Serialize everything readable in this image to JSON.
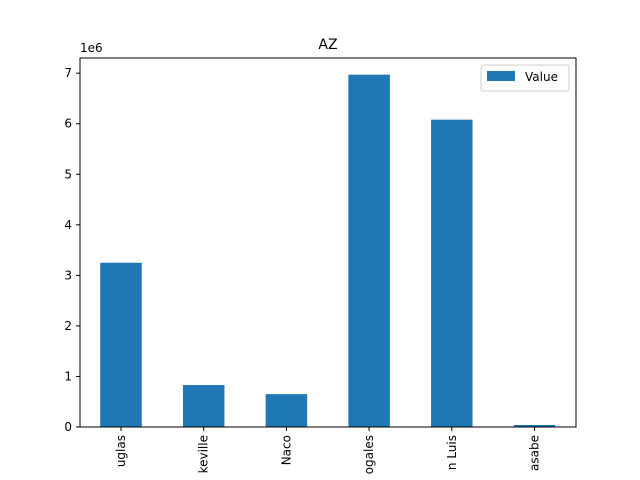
{
  "chart_data": {
    "type": "bar",
    "title": "AZ",
    "scale_label": "1e6",
    "categories": [
      "Douglas",
      "Lukeville",
      "Naco",
      "Nogales",
      "San Luis",
      "Sasabe"
    ],
    "category_labels_visible": [
      "uglas",
      "keville",
      "Naco",
      "ogales",
      "n Luis",
      "asabe"
    ],
    "series": [
      {
        "name": "Value",
        "values": [
          3250000,
          830000,
          650000,
          6970000,
          6080000,
          40000
        ]
      }
    ],
    "ylim": [
      0,
      7300000.0
    ],
    "yticks": [
      0,
      1,
      2,
      3,
      4,
      5,
      6,
      7
    ],
    "grid": false,
    "legend_position": "top-right",
    "bar_color": "#1f77b4"
  }
}
